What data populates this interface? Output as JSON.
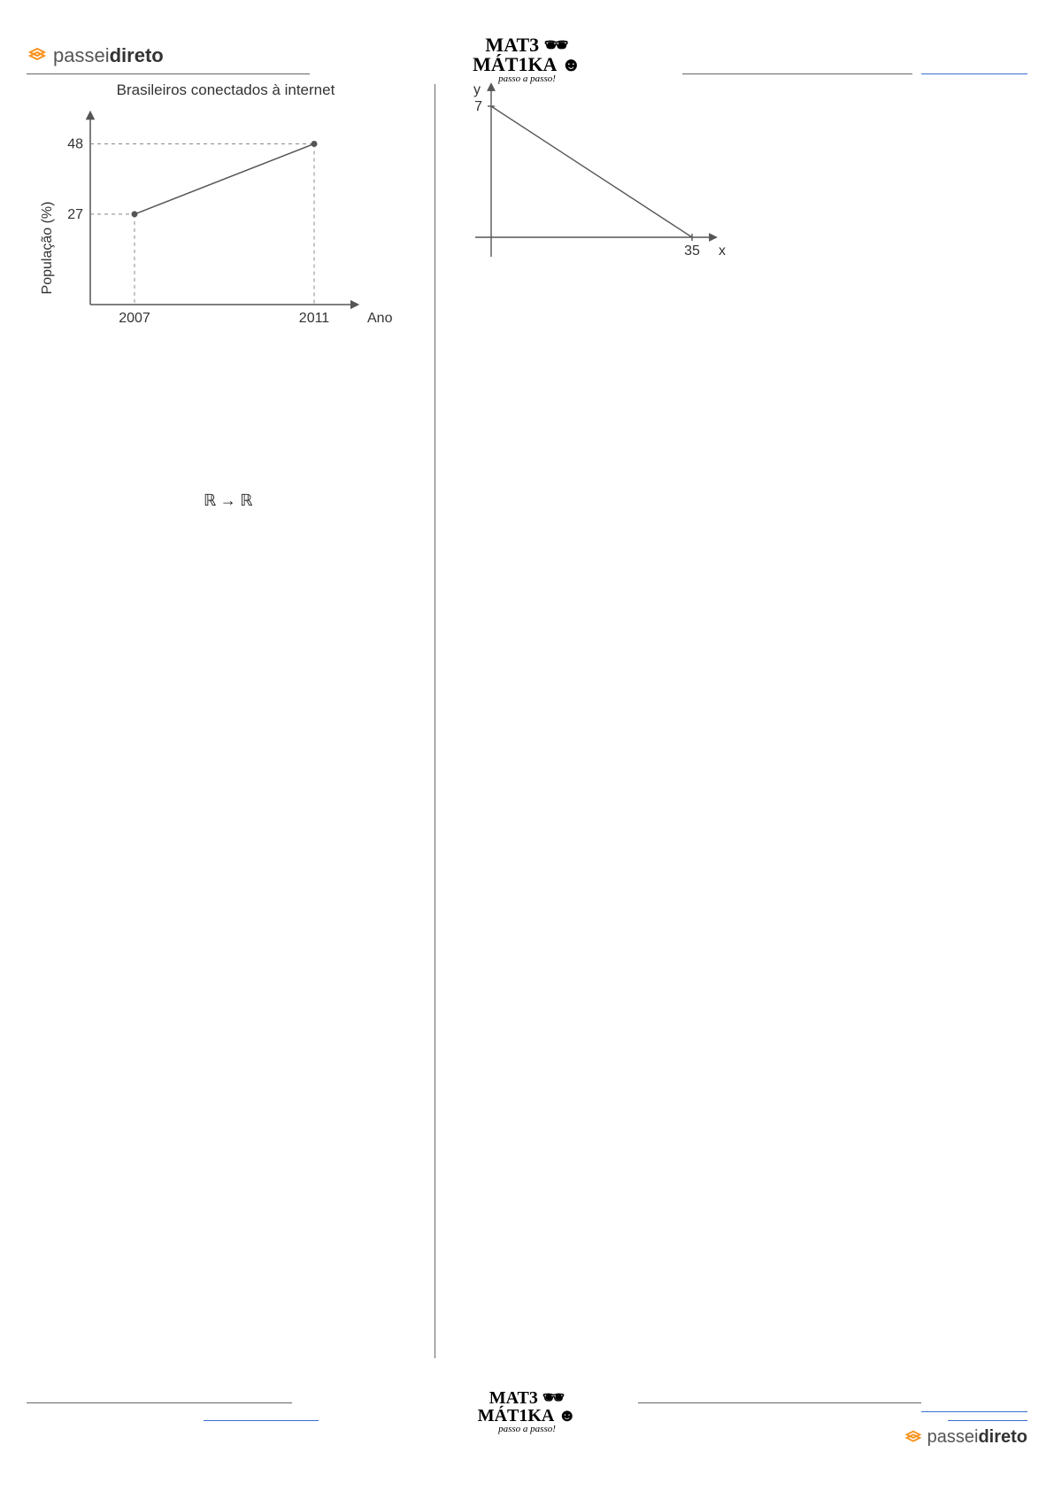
{
  "header": {
    "brand_left_normal": "passei",
    "brand_left_bold": "direto",
    "brand_center_line1": "MAT3 🕶",
    "brand_center_line2": "MÁT1KA ☻",
    "brand_center_sub": "passo a passo!"
  },
  "chart_left": {
    "title": "Brasileiros conectados à internet",
    "y_label": "População (%)",
    "x_label": "Ano",
    "y_ticks": [
      27,
      48
    ],
    "x_ticks": [
      2007,
      2011
    ],
    "points": [
      {
        "x": 2007,
        "y": 27
      },
      {
        "x": 2011,
        "y": 48
      }
    ],
    "axis_color": "#555555",
    "line_color": "#555555",
    "grid_color": "#888888",
    "title_fontsize": 17,
    "tick_fontsize": 16
  },
  "chart_right": {
    "y_label": "y",
    "x_label": "x",
    "y_intercept": 7,
    "x_intercept": 35,
    "axis_color": "#555555",
    "line_color": "#555555",
    "tick_fontsize": 16
  },
  "body": {
    "formula": "ℝ → ℝ"
  },
  "footer": {
    "brand_center_line1": "MAT3 🕶",
    "brand_center_line2": "MÁT1KA ☻",
    "brand_center_sub": "passo a passo!",
    "brand_right_normal": "passei",
    "brand_right_bold": "direto"
  }
}
